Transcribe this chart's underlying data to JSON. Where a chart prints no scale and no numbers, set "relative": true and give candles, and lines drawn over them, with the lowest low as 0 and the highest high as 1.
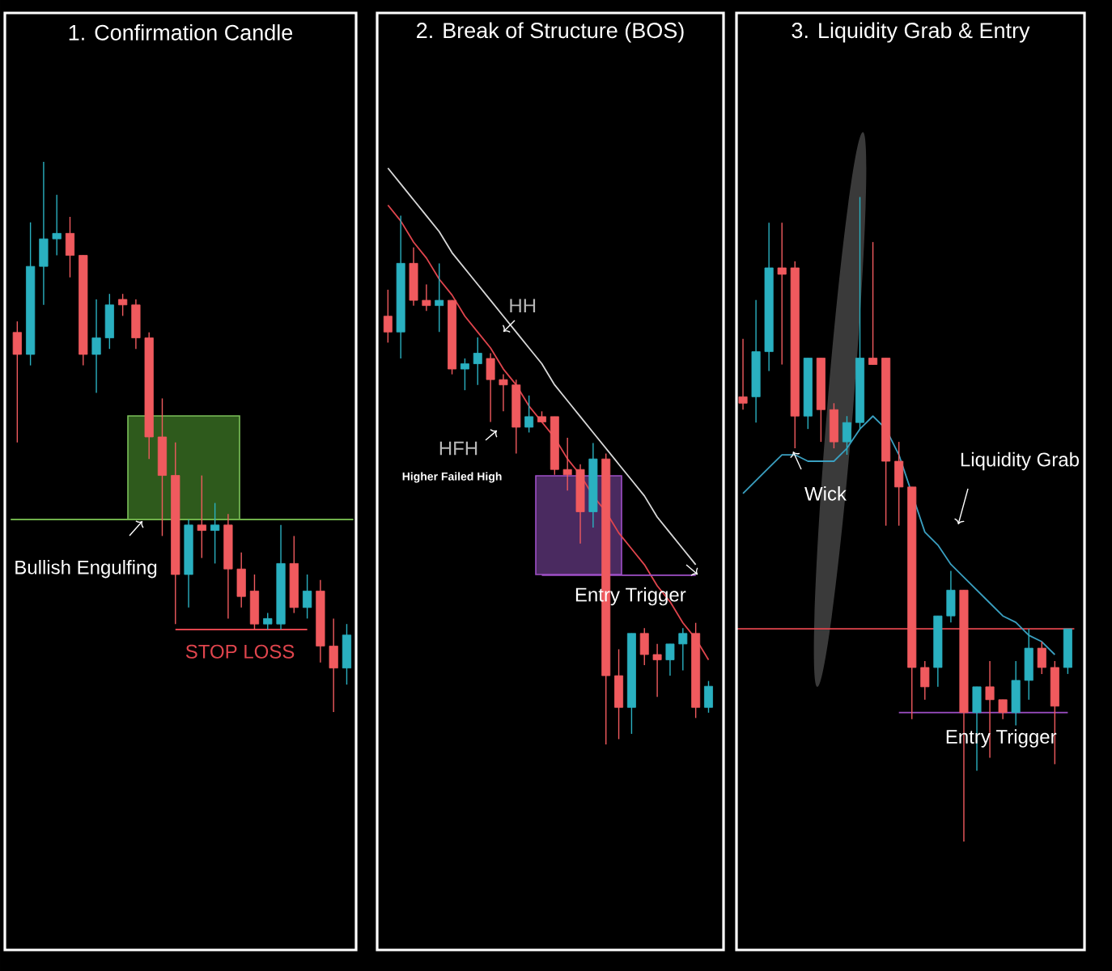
{
  "chart_data": [
    {
      "type": "candlestick",
      "title": "1. Confirmation Candle",
      "relative": true,
      "categories": [
        null,
        null,
        null,
        null,
        null,
        null,
        null,
        null,
        null,
        null,
        null,
        null,
        null,
        null,
        null,
        null,
        null,
        null,
        null,
        null,
        null,
        null,
        null,
        null,
        null,
        null
      ],
      "colors": [
        "#f05a5e",
        "#2ab0c0",
        "#2ab0c0",
        "#2ab0c0",
        "#f05a5e",
        "#f05a5e",
        "#2ab0c0",
        "#2ab0c0",
        "#f05a5e",
        "#f05a5e",
        "#f05a5e",
        "#f05a5e",
        "#f05a5e",
        "#2ab0c0",
        "#f05a5e",
        "#2ab0c0",
        "#f05a5e",
        "#f05a5e",
        "#f05a5e",
        "#2ab0c0",
        "#2ab0c0",
        "#f05a5e",
        "#2ab0c0",
        "#f05a5e",
        "#f05a5e",
        "#2ab0c0"
      ],
      "ohlc": [
        [
          0.69,
          0.71,
          0.49,
          0.65
        ],
        [
          0.65,
          0.89,
          0.63,
          0.81
        ],
        [
          0.81,
          1,
          0.74,
          0.86
        ],
        [
          0.86,
          0.94,
          0.83,
          0.87
        ],
        [
          0.87,
          0.9,
          0.79,
          0.83
        ],
        [
          0.83,
          0.83,
          0.63,
          0.65
        ],
        [
          0.65,
          0.75,
          0.58,
          0.68
        ],
        [
          0.68,
          0.76,
          0.66,
          0.74
        ],
        [
          0.75,
          0.76,
          0.72,
          0.74
        ],
        [
          0.74,
          0.75,
          0.66,
          0.68
        ],
        [
          0.68,
          0.69,
          0.46,
          0.5
        ],
        [
          0.5,
          0.57,
          0.32,
          0.43
        ],
        [
          0.43,
          0.49,
          0.16,
          0.25
        ],
        [
          0.25,
          0.35,
          0.19,
          0.34
        ],
        [
          0.34,
          0.43,
          0.28,
          0.33
        ],
        [
          0.33,
          0.38,
          0.27,
          0.34
        ],
        [
          0.34,
          0.36,
          0.17,
          0.26
        ],
        [
          0.26,
          0.29,
          0.19,
          0.21
        ],
        [
          0.22,
          0.25,
          0.15,
          0.16
        ],
        [
          0.16,
          0.18,
          0.15,
          0.17
        ],
        [
          0.16,
          0.34,
          0.15,
          0.27
        ],
        [
          0.27,
          0.32,
          0.18,
          0.19
        ],
        [
          0.19,
          0.25,
          0.17,
          0.22
        ],
        [
          0.22,
          0.24,
          0.09,
          0.12
        ],
        [
          0.12,
          0.17,
          0,
          0.08
        ],
        [
          0.08,
          0.16,
          0.05,
          0.14
        ]
      ],
      "series": [
        {
          "type": "line",
          "color": "#e0454d",
          "values": [
            null,
            null,
            null,
            null,
            null,
            null,
            null,
            null,
            null,
            null,
            null,
            null,
            0.15,
            0.15,
            0.15,
            0.15,
            0.15,
            0.15,
            0.15,
            0.15,
            0.15,
            0.15,
            0.15,
            null,
            null,
            null
          ]
        }
      ],
      "ref_lines": [
        {
          "axis": "y",
          "value": 0.35,
          "color": "#6fb04a"
        }
      ],
      "annotations": [
        "Bullish Engulfing",
        "STOP LOSS"
      ]
    },
    {
      "type": "candlestick",
      "title": "2. Break of Structure (BOS)",
      "relative": true,
      "categories": [
        null,
        null,
        null,
        null,
        null,
        null,
        null,
        null,
        null,
        null,
        null,
        null,
        null,
        null,
        null,
        null,
        null,
        null,
        null,
        null,
        null,
        null,
        null,
        null,
        null,
        null
      ],
      "colors": [
        "#f05a5e",
        "#2ab0c0",
        "#f05a5e",
        "#f05a5e",
        "#2ab0c0",
        "#f05a5e",
        "#2ab0c0",
        "#2ab0c0",
        "#f05a5e",
        "#f05a5e",
        "#f05a5e",
        "#2ab0c0",
        "#f05a5e",
        "#f05a5e",
        "#f05a5e",
        "#f05a5e",
        "#2ab0c0",
        "#f05a5e",
        "#f05a5e",
        "#2ab0c0",
        "#f05a5e",
        "#f05a5e",
        "#2ab0c0",
        "#2ab0c0",
        "#f05a5e",
        "#2ab0c0"
      ],
      "ohlc": [
        [
          0.81,
          0.86,
          0.76,
          0.78
        ],
        [
          0.78,
          1,
          0.73,
          0.91
        ],
        [
          0.91,
          0.94,
          0.83,
          0.84
        ],
        [
          0.84,
          0.87,
          0.82,
          0.83
        ],
        [
          0.83,
          0.91,
          0.78,
          0.84
        ],
        [
          0.84,
          0.84,
          0.7,
          0.71
        ],
        [
          0.71,
          0.73,
          0.67,
          0.72
        ],
        [
          0.72,
          0.77,
          0.68,
          0.74
        ],
        [
          0.73,
          0.74,
          0.61,
          0.69
        ],
        [
          0.69,
          0.7,
          0.63,
          0.68
        ],
        [
          0.68,
          0.69,
          0.55,
          0.6
        ],
        [
          0.6,
          0.66,
          0.59,
          0.62
        ],
        [
          0.62,
          0.63,
          0.61,
          0.61
        ],
        [
          0.62,
          0.62,
          0.51,
          0.52
        ],
        [
          0.52,
          0.58,
          0.48,
          0.51
        ],
        [
          0.52,
          0.53,
          0.38,
          0.44
        ],
        [
          0.44,
          0.57,
          0.41,
          0.54
        ],
        [
          0.54,
          0.55,
          0,
          0.13
        ],
        [
          0.13,
          0.18,
          0.01,
          0.07
        ],
        [
          0.07,
          0.21,
          0.02,
          0.21
        ],
        [
          0.21,
          0.22,
          0.15,
          0.17
        ],
        [
          0.17,
          0.19,
          0.09,
          0.16
        ],
        [
          0.16,
          0.19,
          0.13,
          0.19
        ],
        [
          0.19,
          0.22,
          0.14,
          0.21
        ],
        [
          0.21,
          0.23,
          0.05,
          0.07
        ],
        [
          0.07,
          0.12,
          0.06,
          0.11
        ]
      ],
      "series": [
        {
          "type": "line",
          "color": "#e0454d",
          "values": [
            1.02,
            0.99,
            0.95,
            0.92,
            0.88,
            0.85,
            0.81,
            0.78,
            0.75,
            0.71,
            0.68,
            0.64,
            0.61,
            0.58,
            0.54,
            0.51,
            0.47,
            0.44,
            0.4,
            0.37,
            0.34,
            0.3,
            0.27,
            0.23,
            0.2,
            0.16
          ]
        },
        {
          "type": "line",
          "color": "#d8d8d8",
          "values": [
            1.09,
            1.06,
            1.03,
            1.0,
            0.97,
            0.93,
            0.9,
            0.87,
            0.84,
            0.81,
            0.78,
            0.75,
            0.72,
            0.68,
            0.65,
            0.62,
            0.59,
            0.56,
            0.53,
            0.5,
            0.47,
            0.43,
            0.4,
            0.37,
            0.34,
            null
          ]
        },
        {
          "type": "line",
          "color": "#a050c8",
          "values": [
            null,
            null,
            null,
            null,
            null,
            null,
            null,
            null,
            null,
            null,
            null,
            null,
            0.32,
            0.32,
            0.32,
            0.32,
            0.32,
            0.32,
            0.32,
            0.32,
            0.32,
            0.32,
            0.32,
            0.32,
            0.32,
            null
          ]
        }
      ],
      "annotations": [
        "HH",
        "HFH",
        "Higher Failed High",
        "Entry Trigger"
      ]
    },
    {
      "type": "candlestick",
      "title": "3. Liquidity Grab & Entry",
      "relative": true,
      "categories": [
        null,
        null,
        null,
        null,
        null,
        null,
        null,
        null,
        null,
        null,
        null,
        null,
        null,
        null,
        null,
        null,
        null,
        null,
        null,
        null,
        null,
        null,
        null,
        null,
        null,
        null
      ],
      "colors": [
        "#f05a5e",
        "#2ab0c0",
        "#2ab0c0",
        "#f05a5e",
        "#f05a5e",
        "#2ab0c0",
        "#f05a5e",
        "#f05a5e",
        "#2ab0c0",
        "#2ab0c0",
        "#f05a5e",
        "#f05a5e",
        "#f05a5e",
        "#f05a5e",
        "#f05a5e",
        "#2ab0c0",
        "#2ab0c0",
        "#f05a5e",
        "#2ab0c0",
        "#f05a5e",
        "#f05a5e",
        "#2ab0c0",
        "#2ab0c0",
        "#f05a5e",
        "#f05a5e",
        "#2ab0c0"
      ],
      "ohlc": [
        [
          0.69,
          0.78,
          0.67,
          0.68
        ],
        [
          0.69,
          0.84,
          0.65,
          0.76
        ],
        [
          0.76,
          0.96,
          0.73,
          0.89
        ],
        [
          0.89,
          0.96,
          0.74,
          0.88
        ],
        [
          0.89,
          0.9,
          0.61,
          0.66
        ],
        [
          0.66,
          0.75,
          0.64,
          0.75
        ],
        [
          0.75,
          0.75,
          0.62,
          0.67
        ],
        [
          0.67,
          0.68,
          0.61,
          0.62
        ],
        [
          0.62,
          0.66,
          0.6,
          0.65
        ],
        [
          0.65,
          1,
          0.64,
          0.75
        ],
        [
          0.75,
          0.93,
          0.74,
          0.74
        ],
        [
          0.75,
          0.75,
          0.49,
          0.59
        ],
        [
          0.59,
          0.62,
          0.49,
          0.55
        ],
        [
          0.55,
          0.55,
          0.19,
          0.27
        ],
        [
          0.27,
          0.28,
          0.22,
          0.24
        ],
        [
          0.27,
          0.35,
          0.24,
          0.35
        ],
        [
          0.35,
          0.42,
          0.34,
          0.39
        ],
        [
          0.39,
          0.39,
          0,
          0.2
        ],
        [
          0.2,
          0.24,
          0.11,
          0.24
        ],
        [
          0.24,
          0.28,
          0.13,
          0.22
        ],
        [
          0.22,
          0.22,
          0.19,
          0.2
        ],
        [
          0.2,
          0.28,
          0.18,
          0.25
        ],
        [
          0.25,
          0.33,
          0.22,
          0.3
        ],
        [
          0.3,
          0.31,
          0.26,
          0.27
        ],
        [
          0.27,
          0.28,
          0.12,
          0.21
        ],
        [
          0.27,
          0.33,
          0.26,
          0.33
        ]
      ],
      "series": [
        {
          "type": "line",
          "color": "#3a9fc0",
          "values": [
            0.54,
            0.56,
            0.58,
            0.6,
            0.6,
            0.59,
            0.59,
            0.59,
            0.61,
            0.64,
            0.66,
            0.64,
            0.6,
            null,
            0.48,
            0.46,
            0.43,
            0.41,
            0.39,
            0.37,
            0.35,
            0.34,
            0.32,
            0.31,
            0.29,
            null
          ]
        },
        {
          "type": "line",
          "color": "#a050c8",
          "values": [
            null,
            null,
            null,
            null,
            null,
            null,
            null,
            null,
            null,
            null,
            null,
            null,
            0.2,
            0.2,
            0.2,
            0.2,
            0.2,
            0.2,
            0.2,
            0.2,
            0.2,
            0.2,
            0.2,
            0.2,
            0.2,
            0.2
          ]
        }
      ],
      "ref_lines": [
        {
          "axis": "y",
          "value": 0.33,
          "color": "#e0454d"
        }
      ],
      "annotations": [
        "Wick",
        "Liquidity Grab",
        "Entry Trigger"
      ]
    }
  ]
}
